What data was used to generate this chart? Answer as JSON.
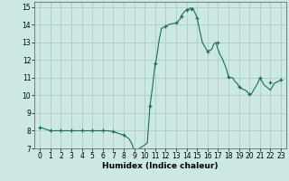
{
  "title": "",
  "xlabel": "Humidex (Indice chaleur)",
  "ylabel": "",
  "bg_color": "#cce8e4",
  "grid_color": "#b0ccc8",
  "line_color": "#1a6b5a",
  "marker_color": "#1a6b5a",
  "xlim": [
    -0.5,
    23.5
  ],
  "ylim": [
    7,
    15.3
  ],
  "yticks": [
    7,
    8,
    9,
    10,
    11,
    12,
    13,
    14,
    15
  ],
  "xticks": [
    0,
    1,
    2,
    3,
    4,
    5,
    6,
    7,
    8,
    9,
    10,
    11,
    12,
    13,
    14,
    15,
    16,
    17,
    18,
    19,
    20,
    21,
    22,
    23
  ],
  "x": [
    0.0,
    0.25,
    0.5,
    0.75,
    1.0,
    1.5,
    2.0,
    2.5,
    3.0,
    3.5,
    4.0,
    4.5,
    5.0,
    5.5,
    6.0,
    6.5,
    7.0,
    7.25,
    7.5,
    7.75,
    8.0,
    8.25,
    8.5,
    8.75,
    9.0,
    9.25,
    9.5,
    9.75,
    10.0,
    10.25,
    10.5,
    10.75,
    11.0,
    11.1,
    11.2,
    11.3,
    11.4,
    11.5,
    11.6,
    12.0,
    12.25,
    12.5,
    13.0,
    13.2,
    13.4,
    13.5,
    13.6,
    13.8,
    14.0,
    14.1,
    14.2,
    14.3,
    14.4,
    14.5,
    14.6,
    15.0,
    15.5,
    16.0,
    16.2,
    16.4,
    16.6,
    16.8,
    17.0,
    17.2,
    17.4,
    17.6,
    17.8,
    18.0,
    18.2,
    18.4,
    18.6,
    18.8,
    19.0,
    19.2,
    19.4,
    19.6,
    19.8,
    20.0,
    20.2,
    20.4,
    20.6,
    20.8,
    21.0,
    21.2,
    21.4,
    21.6,
    21.8,
    22.0,
    22.2,
    22.4,
    22.6,
    22.8,
    23.0
  ],
  "y": [
    8.2,
    8.15,
    8.1,
    8.05,
    8.0,
    8.0,
    8.0,
    8.0,
    8.0,
    8.0,
    8.0,
    8.0,
    8.0,
    8.0,
    8.0,
    8.0,
    7.95,
    7.9,
    7.85,
    7.8,
    7.75,
    7.65,
    7.55,
    7.3,
    6.9,
    6.85,
    7.0,
    7.1,
    7.2,
    7.3,
    9.4,
    10.5,
    11.8,
    12.0,
    12.4,
    12.8,
    13.2,
    13.5,
    13.8,
    13.9,
    14.0,
    14.05,
    14.1,
    14.2,
    14.35,
    14.5,
    14.6,
    14.75,
    14.85,
    14.9,
    14.88,
    14.92,
    14.95,
    14.9,
    14.95,
    14.4,
    13.0,
    12.5,
    12.55,
    12.6,
    12.9,
    13.0,
    12.6,
    12.3,
    12.1,
    11.8,
    11.5,
    11.05,
    11.0,
    11.0,
    10.8,
    10.7,
    10.5,
    10.4,
    10.35,
    10.3,
    10.2,
    10.05,
    10.1,
    10.3,
    10.5,
    10.7,
    11.0,
    10.8,
    10.6,
    10.5,
    10.4,
    10.3,
    10.5,
    10.7,
    10.75,
    10.8,
    10.9
  ],
  "marker_x": [
    0,
    1,
    2,
    3,
    4,
    5,
    6,
    7,
    8,
    9,
    10.5,
    11,
    12,
    13,
    13.5,
    14,
    14.5,
    15,
    16,
    17,
    18,
    19,
    20,
    21,
    22,
    23
  ],
  "marker_y": [
    8.2,
    8.0,
    8.0,
    8.0,
    8.0,
    8.0,
    8.0,
    7.95,
    7.75,
    6.9,
    9.4,
    11.8,
    13.9,
    14.1,
    14.5,
    14.85,
    14.9,
    14.4,
    12.5,
    13.0,
    11.05,
    10.5,
    10.05,
    11.0,
    10.75,
    10.9
  ]
}
